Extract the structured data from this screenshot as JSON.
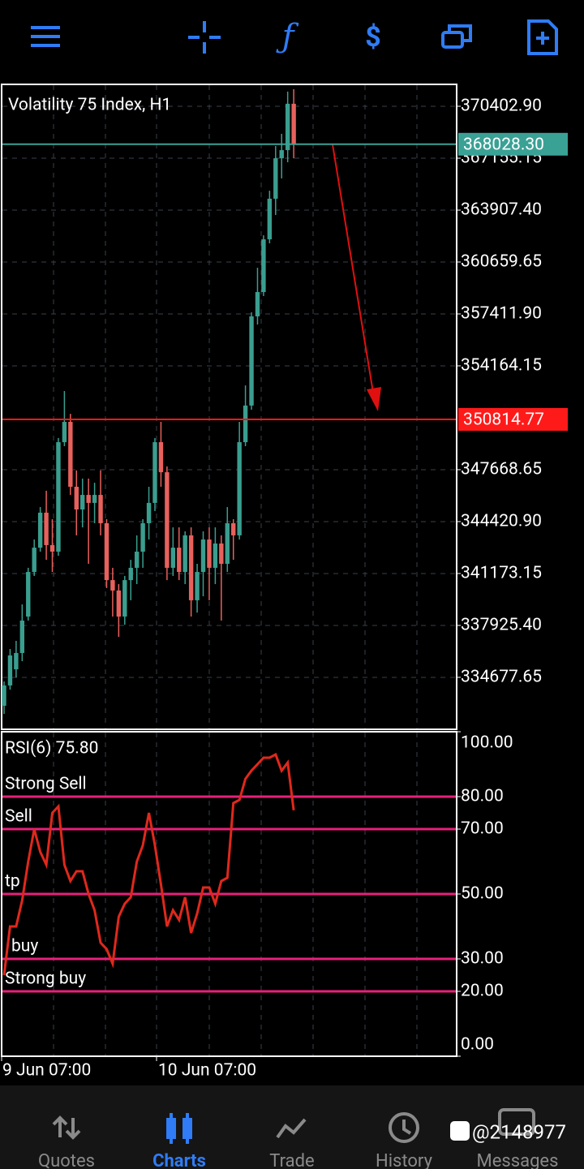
{
  "chart": {
    "type": "candlestick",
    "title": "Volatility 75 Index, H1",
    "x_labels": [
      "9 Jun 07:00",
      "10 Jun 07:00"
    ],
    "up_color": "#3a9e8f",
    "down_color": "#e8615c",
    "grid": true,
    "ylim": [
      331477.5,
      371773
    ],
    "yticks": [
      {
        "value": 334677.65,
        "label": "334677.65"
      },
      {
        "value": 337925.4,
        "label": "337925.40"
      },
      {
        "value": 341173.15,
        "label": "341173.15"
      },
      {
        "value": 344420.9,
        "label": "344420.90"
      },
      {
        "value": 347668.65,
        "label": "347668.65"
      },
      {
        "value": 354164.15,
        "label": "354164.15"
      },
      {
        "value": 357411.9,
        "label": "357411.90"
      },
      {
        "value": 360659.65,
        "label": "360659.65"
      },
      {
        "value": 363907.4,
        "label": "363907.40"
      },
      {
        "value": 367155.15,
        "label": "367155.15"
      },
      {
        "value": 370402.9,
        "label": "370402.90"
      }
    ],
    "lines": [
      {
        "value": 368028.3,
        "label": "368028.30",
        "color": "#3aa195"
      },
      {
        "value": 350814.77,
        "label": "350814.77",
        "color": "#ff1a1a"
      }
    ],
    "candles": [
      {
        "open": 332900,
        "high": 334420,
        "low": 332390,
        "close": 334170
      },
      {
        "open": 334170,
        "high": 336450,
        "low": 333910,
        "close": 336050
      },
      {
        "open": 335180,
        "high": 336960,
        "low": 334680,
        "close": 336200
      },
      {
        "open": 336200,
        "high": 339240,
        "low": 335690,
        "close": 338230
      },
      {
        "open": 338480,
        "high": 341530,
        "low": 338230,
        "close": 341270
      },
      {
        "open": 341270,
        "high": 343300,
        "low": 341020,
        "close": 342790
      },
      {
        "open": 342790,
        "high": 345330,
        "low": 342540,
        "close": 344980
      },
      {
        "open": 344980,
        "high": 346350,
        "low": 342030,
        "close": 342950
      },
      {
        "open": 342950,
        "high": 344570,
        "low": 341270,
        "close": 342540
      },
      {
        "open": 342540,
        "high": 349650,
        "low": 342290,
        "close": 349390
      },
      {
        "open": 349390,
        "high": 352590,
        "low": 349140,
        "close": 350660
      },
      {
        "open": 350660,
        "high": 351160,
        "low": 346090,
        "close": 346600
      },
      {
        "open": 346600,
        "high": 347620,
        "low": 343560,
        "close": 345180
      },
      {
        "open": 345180,
        "high": 347110,
        "low": 344060,
        "close": 346090
      },
      {
        "open": 346090,
        "high": 347110,
        "low": 341780,
        "close": 345590
      },
      {
        "open": 345590,
        "high": 346850,
        "low": 344320,
        "close": 346090
      },
      {
        "open": 346090,
        "high": 347620,
        "low": 343560,
        "close": 344320
      },
      {
        "open": 344320,
        "high": 344570,
        "low": 340260,
        "close": 340760
      },
      {
        "open": 340760,
        "high": 341530,
        "low": 338480,
        "close": 340110
      },
      {
        "open": 340110,
        "high": 340510,
        "low": 337210,
        "close": 338480
      },
      {
        "open": 338480,
        "high": 341020,
        "low": 337970,
        "close": 340760
      },
      {
        "open": 340760,
        "high": 342030,
        "low": 339500,
        "close": 341530
      },
      {
        "open": 341530,
        "high": 343560,
        "low": 340510,
        "close": 342540
      },
      {
        "open": 342540,
        "high": 344570,
        "low": 341530,
        "close": 344320
      },
      {
        "open": 344320,
        "high": 346600,
        "low": 343300,
        "close": 345590
      },
      {
        "open": 345590,
        "high": 349650,
        "low": 345080,
        "close": 349390
      },
      {
        "open": 349390,
        "high": 350660,
        "low": 346600,
        "close": 347510
      },
      {
        "open": 347510,
        "high": 347870,
        "low": 340760,
        "close": 341530
      },
      {
        "open": 341530,
        "high": 344060,
        "low": 341020,
        "close": 342790
      },
      {
        "open": 342790,
        "high": 344060,
        "low": 340760,
        "close": 341270
      },
      {
        "open": 341270,
        "high": 343810,
        "low": 340510,
        "close": 343560
      },
      {
        "open": 343560,
        "high": 344060,
        "low": 338480,
        "close": 339500
      },
      {
        "open": 339500,
        "high": 341780,
        "low": 338730,
        "close": 341270
      },
      {
        "open": 341270,
        "high": 343810,
        "low": 339750,
        "close": 343300
      },
      {
        "open": 343300,
        "high": 344060,
        "low": 339500,
        "close": 341530
      },
      {
        "open": 341530,
        "high": 344060,
        "low": 340510,
        "close": 343050
      },
      {
        "open": 343050,
        "high": 343560,
        "low": 338230,
        "close": 341780
      },
      {
        "open": 341780,
        "high": 345330,
        "low": 341270,
        "close": 344320
      },
      {
        "open": 344320,
        "high": 344570,
        "low": 342030,
        "close": 343560
      },
      {
        "open": 343560,
        "high": 350660,
        "low": 343300,
        "close": 349390
      },
      {
        "open": 349390,
        "high": 352940,
        "low": 349140,
        "close": 351680
      },
      {
        "open": 351680,
        "high": 357510,
        "low": 351420,
        "close": 357260
      },
      {
        "open": 357260,
        "high": 360300,
        "low": 356750,
        "close": 358780
      },
      {
        "open": 358780,
        "high": 362330,
        "low": 358530,
        "close": 362080
      },
      {
        "open": 362080,
        "high": 365120,
        "low": 361830,
        "close": 364620
      },
      {
        "open": 364620,
        "high": 367920,
        "low": 363600,
        "close": 367150
      },
      {
        "open": 367150,
        "high": 368680,
        "low": 365890,
        "close": 367660
      },
      {
        "open": 367660,
        "high": 371320,
        "low": 366900,
        "close": 370560
      },
      {
        "open": 370560,
        "high": 371470,
        "low": 367150,
        "close": 368028.3
      }
    ]
  },
  "rsi": {
    "type": "line",
    "title": "RSI(6) 75.80",
    "color": "#e0281c",
    "level_color": "#e8207a",
    "ylim": [
      0,
      100
    ],
    "yticks": [
      {
        "value": 100,
        "label": "100.00"
      },
      {
        "value": 80,
        "label": "80.00"
      },
      {
        "value": 70,
        "label": "70.00"
      },
      {
        "value": 50,
        "label": "50.00"
      },
      {
        "value": 30,
        "label": "30.00"
      },
      {
        "value": 20,
        "label": "20.00"
      },
      {
        "value": 0,
        "label": "0.00"
      }
    ],
    "levels": [
      {
        "value": 80,
        "name": "Strong Sell"
      },
      {
        "value": 70,
        "name": "Sell"
      },
      {
        "value": 50,
        "name": "tp"
      },
      {
        "value": 30,
        "name": "buy"
      },
      {
        "value": 20,
        "name": "Strong buy"
      }
    ],
    "values": [
      25,
      40,
      40,
      48,
      60,
      70,
      63,
      59,
      75,
      77,
      59,
      54,
      57,
      57,
      50,
      45,
      35,
      33,
      28.5,
      43,
      47,
      49,
      60,
      65,
      75,
      65,
      53,
      40,
      45,
      42,
      49,
      38,
      44,
      52,
      52,
      47,
      54,
      55,
      78,
      79,
      85.5,
      88,
      90,
      92,
      92,
      93,
      88,
      90.5,
      75.8
    ]
  },
  "nav": {
    "items": [
      "Quotes",
      "Charts",
      "Trade",
      "History",
      "Messages"
    ],
    "active": 1
  },
  "watermark": "@2148977"
}
